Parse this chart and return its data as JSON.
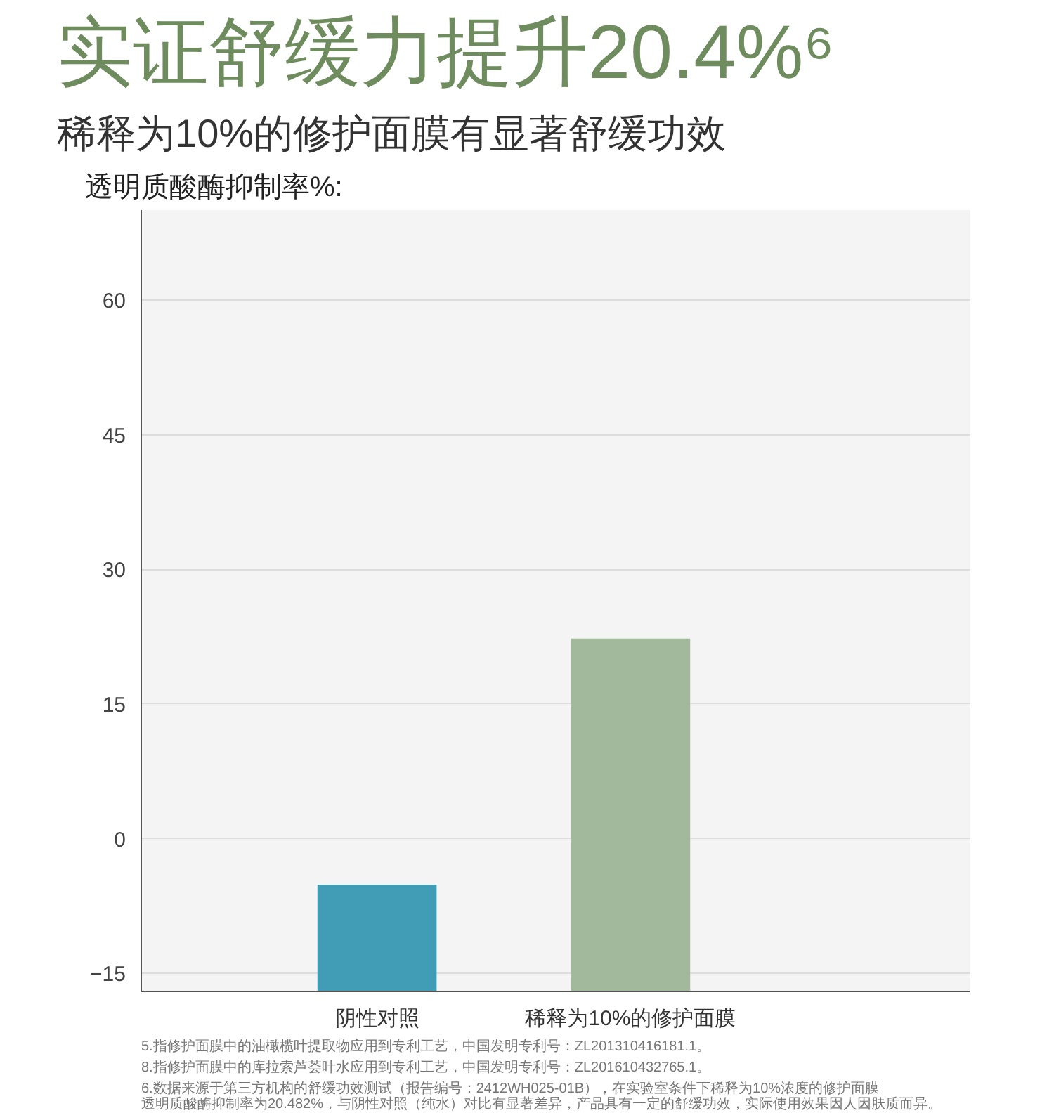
{
  "chart_data": {
    "type": "bar",
    "title": "实证舒缓力提升20.4%⁶",
    "subtitle": "稀释为10%的修护面膜有显著舒缓功效",
    "ylabel": "透明质酸酶抑制率%:",
    "categories": [
      "阴性对照",
      "稀释为10%的修护面膜"
    ],
    "base": [
      -17,
      -17
    ],
    "values": [
      11.9,
      39.3
    ],
    "colors": [
      "#419cb5",
      "#a2b99b"
    ],
    "ylim": [
      -17,
      70
    ],
    "yticks": [
      -15,
      0,
      15,
      30,
      45,
      60
    ],
    "grid": "y",
    "annotations": [
      "5.指修护面膜中的油橄榄叶提取物应用到专利工艺，中国发明专利号：ZL201310416181.1。",
      "8.指修护面膜中的库拉索芦荟叶水应用到专利工艺，中国发明专利号：ZL201610432765.1。",
      "6.数据来源于第三方机构的舒缓功效测试（报告编号：2412WH025-01B），在实验室条件下稀释为10%浓度的修护面膜透明质酸酶抑制率为20.482%，与阴性对照（纯水）对比有显著差异，产品具有一定的舒缓功效，实际使用效果因人因肤质而异。"
    ]
  }
}
